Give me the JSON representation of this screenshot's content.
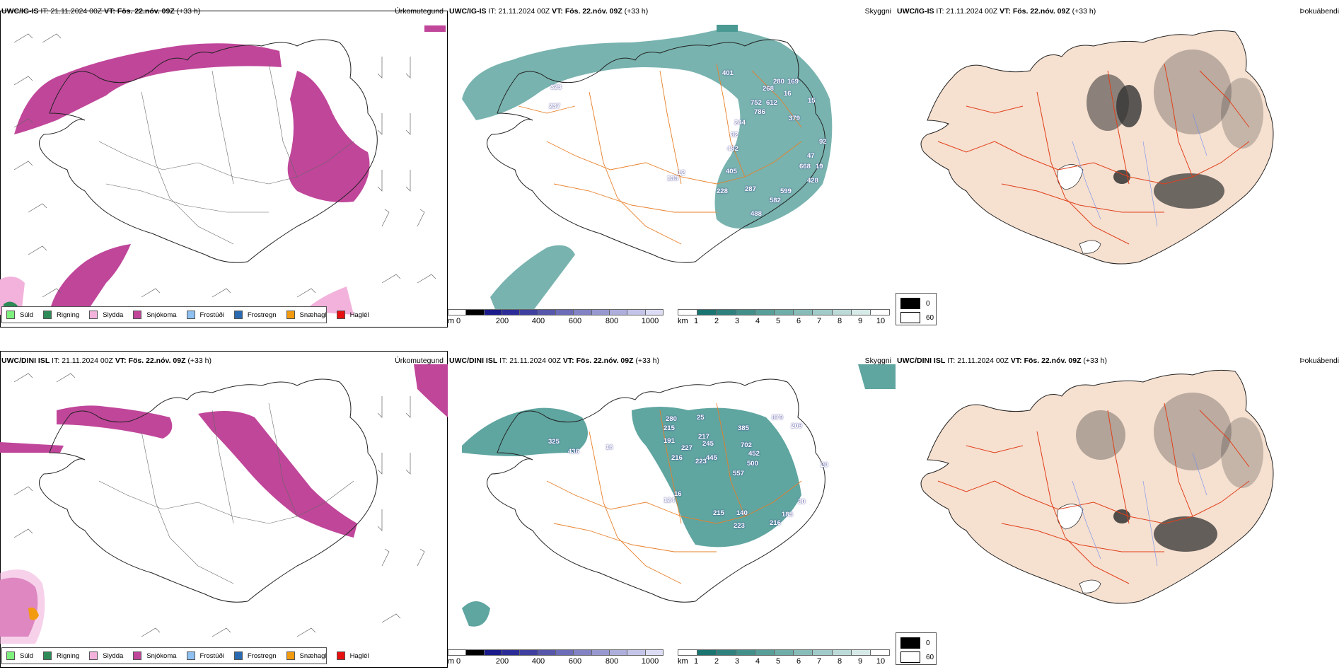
{
  "rows": [
    {
      "model": "UWC/IG-IS",
      "it_label": "IT:",
      "it_value": "21.11.2024 00Z",
      "vt_label": "VT:",
      "vt_value": "Fös. 22.nóv. 09Z",
      "lead": "(+33 h)",
      "panel_titles": [
        "Úrkomutegund",
        "Skyggni",
        "Þokuábendi"
      ],
      "visibility_labels": [
        "323",
        "237",
        "401",
        "280",
        "169",
        "268",
        "16",
        "752",
        "612",
        "786",
        "15",
        "379",
        "244",
        "32",
        "482",
        "92",
        "47",
        "405",
        "668",
        "19",
        "428",
        "228",
        "287",
        "599",
        "582",
        "488",
        "133",
        "12"
      ]
    },
    {
      "model": "UWC/DINI ISL",
      "it_label": "IT:",
      "it_value": "21.11.2024 00Z",
      "vt_label": "VT:",
      "vt_value": "Fös. 22.nóv. 09Z",
      "lead": "(+33 h)",
      "panel_titles": [
        "Úrkomutegund",
        "Skyggni",
        "Þokuábendi"
      ],
      "visibility_labels": [
        "325",
        "436",
        "16",
        "280",
        "25",
        "215",
        "217",
        "191",
        "227",
        "245",
        "216",
        "223",
        "445",
        "385",
        "879",
        "209",
        "702",
        "452",
        "500",
        "557",
        "20",
        "124",
        "16",
        "215",
        "140",
        "223",
        "216",
        "185",
        "30"
      ]
    }
  ],
  "precip_legend": [
    {
      "label": "Súld",
      "color": "#7ef07e"
    },
    {
      "label": "Rigning",
      "color": "#2e8b57"
    },
    {
      "label": "Slydda",
      "color": "#f2b2dc"
    },
    {
      "label": "Snjókoma",
      "color": "#c0469a"
    },
    {
      "label": "Frostúði",
      "color": "#8fc0f2"
    },
    {
      "label": "Frostregn",
      "color": "#2a6ab0"
    },
    {
      "label": "Snæhagl",
      "color": "#f29a10"
    },
    {
      "label": "Haglél",
      "color": "#e81010"
    }
  ],
  "height_scale": {
    "unit": "m",
    "ticks": [
      "0",
      "200",
      "400",
      "600",
      "800",
      "1000"
    ],
    "colors": [
      "#ffffff",
      "#000000",
      "#1a1a8a",
      "#2c2c98",
      "#3f3fa0",
      "#5656ab",
      "#6c6cb8",
      "#8282c4",
      "#9898d0",
      "#aeaedc",
      "#c4c4e8",
      "#dcdcf4"
    ]
  },
  "visibility_scale": {
    "unit": "km",
    "ticks": [
      "1",
      "2",
      "3",
      "4",
      "5",
      "6",
      "7",
      "8",
      "9",
      "10"
    ],
    "colors": [
      "#ffffff",
      "#1a7470",
      "#2f817d",
      "#43908b",
      "#589e99",
      "#6eada8",
      "#87bcb8",
      "#a0cbc8",
      "#bbdad8",
      "#d6eae8",
      "#ffffff"
    ]
  },
  "fog_legend": [
    {
      "label": "0",
      "color": "#000000"
    },
    {
      "label": "60",
      "color": "#ffffff"
    }
  ],
  "colors": {
    "snow": "#c0469a",
    "sleet": "#f2b2dc",
    "rain": "#2e8b57",
    "teal": "#2a8780",
    "land_fog": "#f6e0d0",
    "roads_orange": "#e8802a",
    "roads_red": "#e0401a",
    "rivers": "#6f8ff0"
  }
}
